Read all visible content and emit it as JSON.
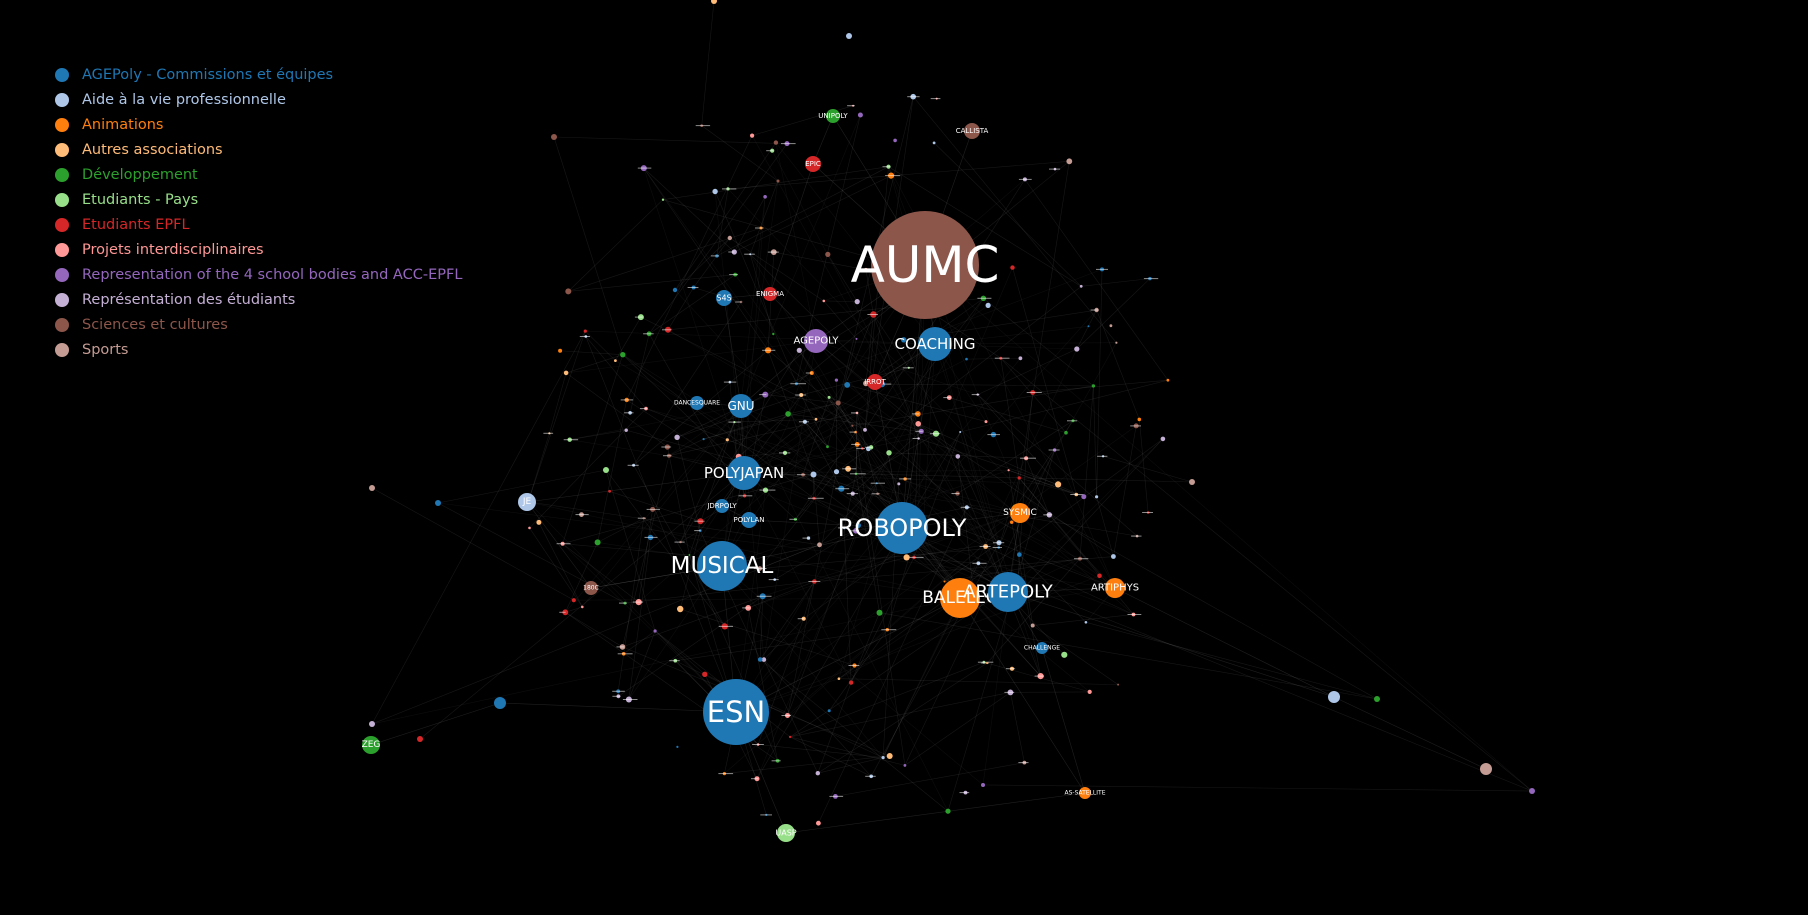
{
  "legend": {
    "items": [
      {
        "label": "AGEPoly - Commissions et équipes",
        "color": "#1f77b4"
      },
      {
        "label": "Aide à la vie professionnelle",
        "color": "#aec7e8"
      },
      {
        "label": "Animations",
        "color": "#ff7f0e"
      },
      {
        "label": "Autres associations",
        "color": "#ffbb78"
      },
      {
        "label": "Développement",
        "color": "#2ca02c"
      },
      {
        "label": "Etudiants - Pays",
        "color": "#98df8a"
      },
      {
        "label": "Etudiants EPFL",
        "color": "#d62728"
      },
      {
        "label": "Projets interdisciplinaires",
        "color": "#ff9896"
      },
      {
        "label": "Representation of the 4 school bodies and ACC-EPFL",
        "color": "#9467bd"
      },
      {
        "label": "Représentation des étudiants",
        "color": "#c5b0d5"
      },
      {
        "label": "Sciences et cultures",
        "color": "#8c564b"
      },
      {
        "label": "Sports",
        "color": "#c49c94"
      }
    ]
  },
  "graph": {
    "nodes": [
      {
        "label": "AUMC",
        "category": 10
      },
      {
        "label": "ESN",
        "category": 0
      },
      {
        "label": "ROBOPOLY",
        "category": 0
      },
      {
        "label": "MUSICAL",
        "category": 0
      },
      {
        "label": "POLYJAPAN",
        "category": 0
      },
      {
        "label": "COACHING",
        "category": 0
      },
      {
        "label": "BALELEC",
        "category": 2
      },
      {
        "label": "ARTEPOLY",
        "category": 0
      },
      {
        "label": "GNU",
        "category": 0
      },
      {
        "label": "AGEPOLY",
        "category": 8
      },
      {
        "label": "ARTIPHYS",
        "category": 2
      },
      {
        "label": "SYSMIC",
        "category": 2
      },
      {
        "label": "UNIPOLY",
        "category": 4
      },
      {
        "label": "CALLISTA",
        "category": 10
      },
      {
        "label": "EPIC",
        "category": 6
      },
      {
        "label": "ENIGMA",
        "category": 6
      },
      {
        "label": "S4S",
        "category": 0
      },
      {
        "label": "IRROT",
        "category": 6
      },
      {
        "label": "DANCESQUARE",
        "category": 0
      },
      {
        "label": "JDRPOLY",
        "category": 0
      },
      {
        "label": "POLYLAN",
        "category": 0
      },
      {
        "label": "CHALLENGE",
        "category": 0
      },
      {
        "label": "ZEG",
        "category": 4
      },
      {
        "label": "UASP",
        "category": 5
      },
      {
        "label": "AS-SATELLITE",
        "category": 2
      },
      {
        "label": "JE",
        "category": 1
      },
      {
        "label": "180C",
        "category": 10
      },
      {
        "label": "",
        "category": 1
      },
      {
        "label": "",
        "category": 0
      },
      {
        "label": "",
        "category": 11
      }
    ]
  }
}
